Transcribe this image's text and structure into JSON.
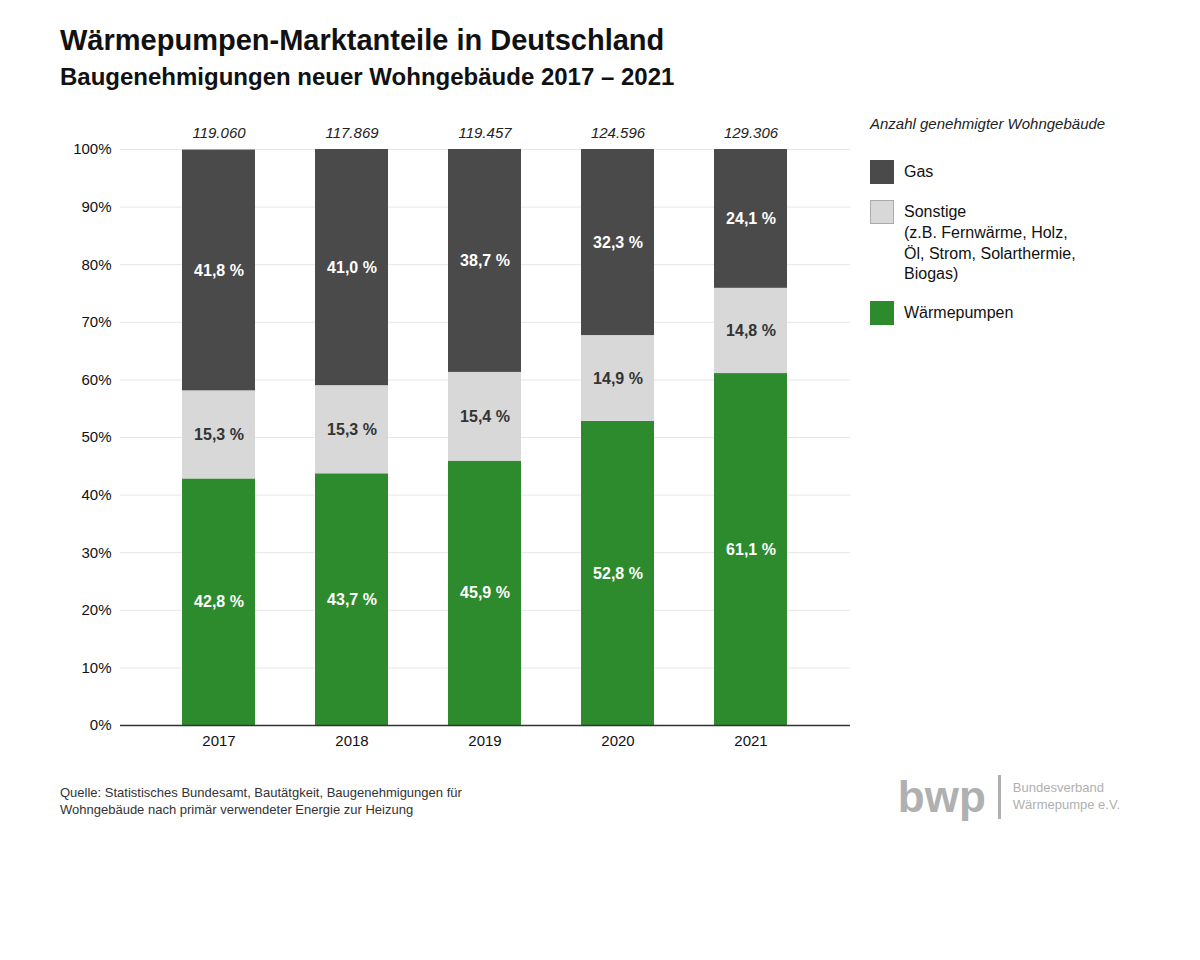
{
  "chart_data": {
    "type": "bar",
    "stacked": true,
    "title": "Wärmepumpen-Marktanteile in Deutschland",
    "subtitle": "Baugenehmigungen neuer Wohngebäude 2017 – 2021",
    "categories": [
      "2017",
      "2018",
      "2019",
      "2020",
      "2021"
    ],
    "series": [
      {
        "name": "Wärmepumpen",
        "color": "#2d8b2d",
        "values": [
          42.8,
          43.7,
          45.9,
          52.8,
          61.1
        ],
        "value_labels": [
          "42,8 %",
          "43,7 %",
          "45,9 %",
          "52,8 %",
          "61,1 %"
        ]
      },
      {
        "name": "Sonstige\n(z.B. Fernwärme, Holz,\nÖl, Strom, Solarthermie,\nBiogas)",
        "color": "#d8d8d8",
        "values": [
          15.3,
          15.3,
          15.4,
          14.9,
          14.8
        ],
        "value_labels": [
          "15,3 %",
          "15,3 %",
          "15,4 %",
          "14,9 %",
          "14,8 %"
        ]
      },
      {
        "name": "Gas",
        "color": "#4a4a4a",
        "values": [
          41.8,
          41.0,
          38.7,
          32.3,
          24.1
        ],
        "value_labels": [
          "41,8 %",
          "41,0 %",
          "38,7 %",
          "32,3 %",
          "24,1 %"
        ]
      }
    ],
    "data_labels": true,
    "totals": [
      {
        "value": 119060,
        "label": "119.060"
      },
      {
        "value": 117869,
        "label": "117.869"
      },
      {
        "value": 119457,
        "label": "119.457"
      },
      {
        "value": 124596,
        "label": "124.596"
      },
      {
        "value": 129306,
        "label": "129.306"
      }
    ],
    "totals_label": "Anzahl genehmigter Wohngebäude",
    "ylim": [
      0,
      100
    ],
    "yticks": [
      {
        "value": 0,
        "label": "0%"
      },
      {
        "value": 10,
        "label": "10%"
      },
      {
        "value": 20,
        "label": "20%"
      },
      {
        "value": 30,
        "label": "30%"
      },
      {
        "value": 40,
        "label": "40%"
      },
      {
        "value": 50,
        "label": "50%"
      },
      {
        "value": 60,
        "label": "60%"
      },
      {
        "value": 70,
        "label": "70%"
      },
      {
        "value": 80,
        "label": "80%"
      },
      {
        "value": 90,
        "label": "90%"
      },
      {
        "value": 100,
        "label": "100%"
      }
    ],
    "grid": true,
    "legend": "right",
    "caption": "Quelle: Statistisches Bundesamt, Bautätgkeit, Baugenehmigungen für\nWohngebäude nach primär verwendeter Energie zur Heizung",
    "annotations": [
      "bwp",
      "Bundesverband\nWärmepumpe e.V."
    ]
  }
}
